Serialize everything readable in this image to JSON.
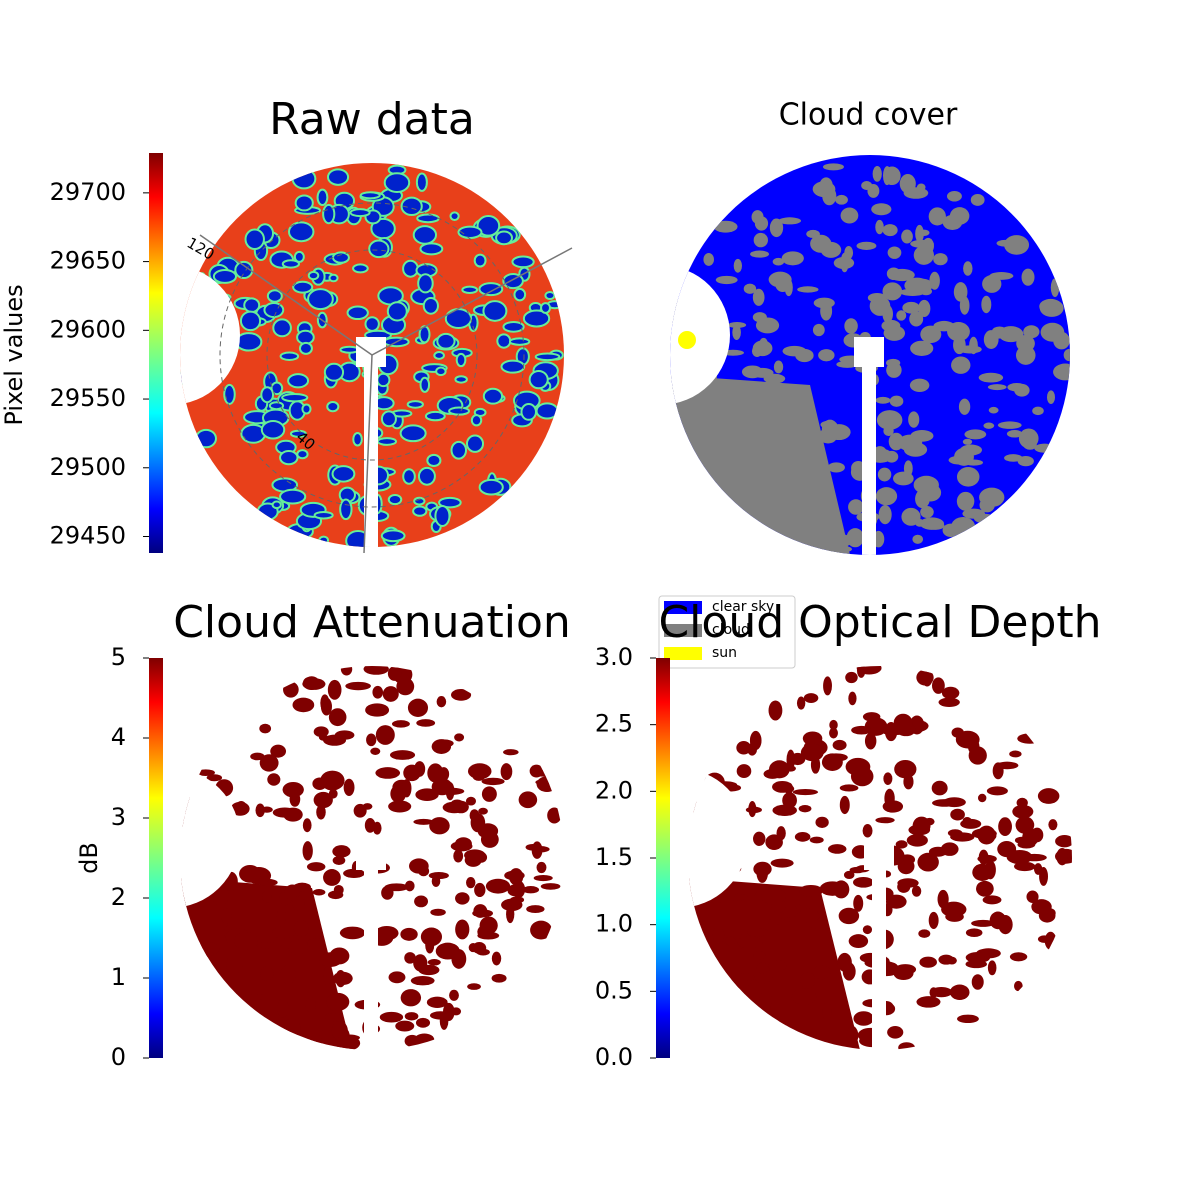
{
  "chart_data": [
    {
      "type": "heatmap",
      "title": "Raw data",
      "annotations": [
        "120",
        "40"
      ],
      "colorbar": {
        "label": "Pixel values",
        "lim": [
          29438,
          29729
        ],
        "ticks": [
          29450,
          29500,
          29550,
          29600,
          29650,
          29700
        ]
      }
    },
    {
      "type": "classmap",
      "title": "Cloud cover",
      "series": [
        {
          "name": "clear sky",
          "color": "#0000ff"
        },
        {
          "name": "cloud",
          "color": "#808080"
        },
        {
          "name": "sun",
          "color": "#ffff00"
        }
      ],
      "legend": "lower left"
    },
    {
      "type": "heatmap",
      "title": "Cloud Attenuation",
      "colorbar": {
        "label": "dB",
        "lim": [
          0,
          5
        ],
        "ticks": [
          0,
          1,
          2,
          3,
          4,
          5
        ]
      }
    },
    {
      "type": "heatmap",
      "title": "Cloud Optical Depth",
      "colorbar": {
        "lim": [
          0,
          3
        ],
        "ticks": [
          {
            "value": 0,
            "label": "0.0"
          },
          {
            "value": 0.5,
            "label": "0.5"
          },
          {
            "value": 1,
            "label": "1.0"
          },
          {
            "value": 1.5,
            "label": "1.5"
          },
          {
            "value": 2,
            "label": "2.0"
          },
          {
            "value": 2.5,
            "label": "2.5"
          },
          {
            "value": 3,
            "label": "3.0"
          }
        ]
      }
    }
  ]
}
